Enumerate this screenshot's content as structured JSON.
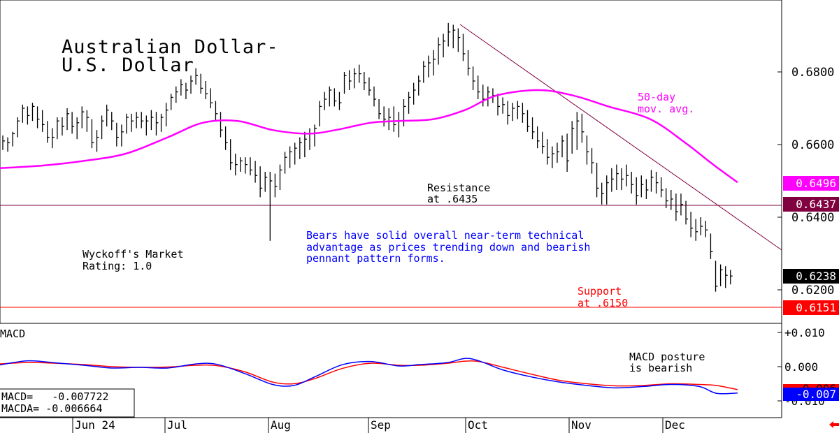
{
  "colors": {
    "price": "#000000",
    "ma": "#ff00ff",
    "support": "#ff0000",
    "resistance": "#800040",
    "trendline": "#800040",
    "macd": "#0000ff",
    "macda": "#ff0000",
    "annotation_blue": "#0000ff",
    "annotation_pink": "#ff00ff",
    "annotation_red": "#ff0000",
    "badge_ma": "#ff00ff",
    "badge_resistance": "#800040",
    "badge_last": "#000000",
    "badge_support": "#ff0000",
    "badge_macd": "#0000ff"
  },
  "title": {
    "line1": "Australian Dollar-",
    "line2": "U.S. Dollar"
  },
  "annotations": {
    "ma_label1": "50-day",
    "ma_label2": "mov. avg.",
    "resistance_label1": "Resistance",
    "resistance_label2": "at .6435",
    "support_label1": "Support",
    "support_label2": "at .6150",
    "commentary1": "Bears have solid overall near-term technical",
    "commentary2": "advantage as prices trending down and bearish",
    "commentary3": "pennant pattern forms.",
    "rating1": "Wyckoff's Market",
    "rating2": "Rating: 1.0",
    "macd_posture1": "MACD posture",
    "macd_posture2": "is bearish"
  },
  "macd_panel": {
    "label": "MACD",
    "macd_readout": "MACD=   -0.007722",
    "macda_readout": "MACDA= -0.006664"
  },
  "badges": {
    "ma": "0.6496",
    "resistance": "0.6437",
    "last": "0.6238",
    "support": "0.6151",
    "macd_hidden": "-0.006",
    "macd_last": "-0.007"
  },
  "chart_data": {
    "type": "ohlc_bar",
    "title": "Australian Dollar-U.S. Dollar",
    "x_tick_labels": [
      "Jun 24",
      "Jul",
      "Aug",
      "Sep",
      "Oct",
      "Nov",
      "Dec"
    ],
    "y_tick_labels": [
      "0.6800",
      "0.6600",
      "0.6400",
      "0.6200"
    ],
    "ylim": [
      0.61,
      0.699
    ],
    "resistance": 0.6435,
    "support": 0.615,
    "last_price": 0.6238,
    "ma50_last": 0.6496,
    "trendline": {
      "from": [
        "Oct 1",
        0.6935
      ],
      "to": [
        "Dec 31",
        0.6291
      ]
    },
    "series": [
      {
        "name": "price",
        "bars": [
          [
            0.6625,
            0.6585,
            0.661
          ],
          [
            0.662,
            0.658,
            0.6605
          ],
          [
            0.6635,
            0.6595,
            0.663
          ],
          [
            0.6675,
            0.662,
            0.6665
          ],
          [
            0.671,
            0.666,
            0.67
          ],
          [
            0.6705,
            0.6655,
            0.668
          ],
          [
            0.6715,
            0.6665,
            0.6705
          ],
          [
            0.6705,
            0.6645,
            0.667
          ],
          [
            0.6695,
            0.6635,
            0.6655
          ],
          [
            0.6665,
            0.6605,
            0.662
          ],
          [
            0.6645,
            0.659,
            0.662
          ],
          [
            0.6675,
            0.6615,
            0.6665
          ],
          [
            0.6675,
            0.6625,
            0.665
          ],
          [
            0.67,
            0.664,
            0.6685
          ],
          [
            0.669,
            0.663,
            0.665
          ],
          [
            0.6675,
            0.6615,
            0.666
          ],
          [
            0.6705,
            0.6645,
            0.669
          ],
          [
            0.6695,
            0.6635,
            0.6675
          ],
          [
            0.667,
            0.659,
            0.6605
          ],
          [
            0.664,
            0.658,
            0.662
          ],
          [
            0.668,
            0.6615,
            0.6665
          ],
          [
            0.671,
            0.665,
            0.6695
          ],
          [
            0.669,
            0.664,
            0.6665
          ],
          [
            0.666,
            0.6595,
            0.662
          ],
          [
            0.6655,
            0.6595,
            0.6635
          ],
          [
            0.6685,
            0.663,
            0.6675
          ],
          [
            0.6685,
            0.6635,
            0.6665
          ],
          [
            0.669,
            0.6645,
            0.6675
          ],
          [
            0.669,
            0.6645,
            0.6665
          ],
          [
            0.668,
            0.6625,
            0.6665
          ],
          [
            0.6695,
            0.664,
            0.6675
          ],
          [
            0.669,
            0.6625,
            0.666
          ],
          [
            0.6685,
            0.6635,
            0.6675
          ],
          [
            0.6715,
            0.665,
            0.6695
          ],
          [
            0.674,
            0.6695,
            0.673
          ],
          [
            0.676,
            0.6715,
            0.6745
          ],
          [
            0.678,
            0.6735,
            0.6765
          ],
          [
            0.677,
            0.6725,
            0.675
          ],
          [
            0.679,
            0.674,
            0.6775
          ],
          [
            0.681,
            0.6765,
            0.679
          ],
          [
            0.6795,
            0.674,
            0.6755
          ],
          [
            0.6775,
            0.6725,
            0.674
          ],
          [
            0.6755,
            0.67,
            0.6715
          ],
          [
            0.672,
            0.6665,
            0.6685
          ],
          [
            0.669,
            0.662,
            0.664
          ],
          [
            0.665,
            0.6585,
            0.6605
          ],
          [
            0.6615,
            0.653,
            0.655
          ],
          [
            0.6575,
            0.6515,
            0.6545
          ],
          [
            0.6565,
            0.6525,
            0.6555
          ],
          [
            0.6565,
            0.652,
            0.6545
          ],
          [
            0.6565,
            0.6515,
            0.653
          ],
          [
            0.6555,
            0.6495,
            0.6515
          ],
          [
            0.654,
            0.6455,
            0.648
          ],
          [
            0.6525,
            0.647,
            0.651
          ],
          [
            0.6525,
            0.6335,
            0.65
          ],
          [
            0.652,
            0.6455,
            0.6485
          ],
          [
            0.6545,
            0.6475,
            0.653
          ],
          [
            0.658,
            0.652,
            0.6565
          ],
          [
            0.6595,
            0.6535,
            0.658
          ],
          [
            0.6605,
            0.6545,
            0.659
          ],
          [
            0.662,
            0.656,
            0.6605
          ],
          [
            0.6635,
            0.6565,
            0.6615
          ],
          [
            0.6645,
            0.6585,
            0.663
          ],
          [
            0.6655,
            0.6595,
            0.6645
          ],
          [
            0.672,
            0.665,
            0.6705
          ],
          [
            0.6745,
            0.6695,
            0.6725
          ],
          [
            0.676,
            0.6705,
            0.675
          ],
          [
            0.6755,
            0.6705,
            0.672
          ],
          [
            0.6745,
            0.6695,
            0.6715
          ],
          [
            0.68,
            0.674,
            0.679
          ],
          [
            0.6805,
            0.675,
            0.6775
          ],
          [
            0.681,
            0.6755,
            0.6795
          ],
          [
            0.682,
            0.677,
            0.6795
          ],
          [
            0.68,
            0.675,
            0.677
          ],
          [
            0.6785,
            0.6735,
            0.675
          ],
          [
            0.676,
            0.6705,
            0.6725
          ],
          [
            0.6725,
            0.667,
            0.6685
          ],
          [
            0.6705,
            0.665,
            0.667
          ],
          [
            0.67,
            0.664,
            0.6675
          ],
          [
            0.6705,
            0.6635,
            0.6655
          ],
          [
            0.669,
            0.662,
            0.6665
          ],
          [
            0.6725,
            0.665,
            0.6705
          ],
          [
            0.6745,
            0.6685,
            0.673
          ],
          [
            0.677,
            0.671,
            0.675
          ],
          [
            0.679,
            0.6735,
            0.6775
          ],
          [
            0.683,
            0.677,
            0.6815
          ],
          [
            0.6845,
            0.6785,
            0.6825
          ],
          [
            0.686,
            0.679,
            0.6835
          ],
          [
            0.6895,
            0.682,
            0.6875
          ],
          [
            0.6905,
            0.684,
            0.6885
          ],
          [
            0.6935,
            0.687,
            0.691
          ],
          [
            0.693,
            0.6865,
            0.6915
          ],
          [
            0.692,
            0.6855,
            0.6895
          ],
          [
            0.6905,
            0.683,
            0.685
          ],
          [
            0.686,
            0.679,
            0.681
          ],
          [
            0.6815,
            0.675,
            0.6775
          ],
          [
            0.679,
            0.6725,
            0.6745
          ],
          [
            0.6765,
            0.6705,
            0.6725
          ],
          [
            0.676,
            0.6705,
            0.6745
          ],
          [
            0.6755,
            0.6715,
            0.6735
          ],
          [
            0.674,
            0.668,
            0.6705
          ],
          [
            0.673,
            0.6685,
            0.671
          ],
          [
            0.672,
            0.6655,
            0.668
          ],
          [
            0.6715,
            0.6665,
            0.67
          ],
          [
            0.672,
            0.667,
            0.6705
          ],
          [
            0.6715,
            0.666,
            0.6685
          ],
          [
            0.6695,
            0.6635,
            0.665
          ],
          [
            0.6675,
            0.6615,
            0.6635
          ],
          [
            0.665,
            0.659,
            0.661
          ],
          [
            0.6635,
            0.6575,
            0.6595
          ],
          [
            0.6615,
            0.6545,
            0.6565
          ],
          [
            0.6595,
            0.6535,
            0.6575
          ],
          [
            0.6605,
            0.655,
            0.658
          ],
          [
            0.6625,
            0.6565,
            0.661
          ],
          [
            0.663,
            0.6525,
            0.6555
          ],
          [
            0.6665,
            0.6575,
            0.6645
          ],
          [
            0.669,
            0.6585,
            0.6665
          ],
          [
            0.6685,
            0.6605,
            0.6635
          ],
          [
            0.6625,
            0.6545,
            0.658
          ],
          [
            0.659,
            0.652,
            0.655
          ],
          [
            0.655,
            0.6455,
            0.648
          ],
          [
            0.6495,
            0.6435,
            0.6465
          ],
          [
            0.6515,
            0.6435,
            0.6495
          ],
          [
            0.6535,
            0.647,
            0.6505
          ],
          [
            0.6545,
            0.6475,
            0.652
          ],
          [
            0.6535,
            0.6475,
            0.6505
          ],
          [
            0.6545,
            0.6485,
            0.6515
          ],
          [
            0.6525,
            0.6465,
            0.649
          ],
          [
            0.651,
            0.6435,
            0.646
          ],
          [
            0.6515,
            0.6455,
            0.649
          ],
          [
            0.6505,
            0.645,
            0.6475
          ],
          [
            0.653,
            0.647,
            0.651
          ],
          [
            0.6525,
            0.6465,
            0.6495
          ],
          [
            0.651,
            0.6455,
            0.6475
          ],
          [
            0.648,
            0.6425,
            0.6445
          ],
          [
            0.6475,
            0.642,
            0.645
          ],
          [
            0.6465,
            0.639,
            0.6415
          ],
          [
            0.6465,
            0.6405,
            0.6435
          ],
          [
            0.6445,
            0.638,
            0.6395
          ],
          [
            0.6415,
            0.6345,
            0.637
          ],
          [
            0.6395,
            0.6335,
            0.636
          ],
          [
            0.64,
            0.635,
            0.6375
          ],
          [
            0.639,
            0.6345,
            0.6365
          ],
          [
            0.6355,
            0.6285,
            0.6305
          ],
          [
            0.628,
            0.6195,
            0.621
          ],
          [
            0.627,
            0.621,
            0.6255
          ],
          [
            0.6265,
            0.6205,
            0.624
          ],
          [
            0.6255,
            0.6215,
            0.6238
          ]
        ]
      },
      {
        "name": "50-day mov. avg.",
        "points": [
          [
            0,
            0.6535
          ],
          [
            60,
            0.6542
          ],
          [
            120,
            0.6555
          ],
          [
            180,
            0.6575
          ],
          [
            240,
            0.662
          ],
          [
            290,
            0.666
          ],
          [
            340,
            0.6665
          ],
          [
            390,
            0.664
          ],
          [
            440,
            0.663
          ],
          [
            480,
            0.664
          ],
          [
            530,
            0.666
          ],
          [
            570,
            0.6665
          ],
          [
            620,
            0.667
          ],
          [
            665,
            0.6695
          ],
          [
            710,
            0.6735
          ],
          [
            770,
            0.675
          ],
          [
            820,
            0.6735
          ],
          [
            870,
            0.6705
          ],
          [
            930,
            0.667
          ],
          [
            980,
            0.6605
          ],
          [
            1020,
            0.6545
          ],
          [
            1055,
            0.6496
          ]
        ]
      }
    ],
    "macd_ylim": [
      -0.0105,
      0.0115
    ],
    "macd_y_tick_labels": [
      "+0.010",
      "0.000",
      "-0.010"
    ],
    "macd_series": [
      {
        "name": "MACD",
        "points": [
          [
            0,
            0.0005
          ],
          [
            40,
            0.0017
          ],
          [
            80,
            0.0011
          ],
          [
            120,
            0.0004
          ],
          [
            160,
            -0.0004
          ],
          [
            200,
            -0.0002
          ],
          [
            240,
            -0.0004
          ],
          [
            280,
            0.0008
          ],
          [
            310,
            0.0007
          ],
          [
            350,
            -0.002
          ],
          [
            390,
            -0.0052
          ],
          [
            420,
            -0.0055
          ],
          [
            450,
            -0.003
          ],
          [
            490,
            0.0006
          ],
          [
            530,
            0.0015
          ],
          [
            570,
            0.0002
          ],
          [
            600,
            0.0006
          ],
          [
            640,
            0.0012
          ],
          [
            665,
            0.0024
          ],
          [
            685,
            0.0017
          ],
          [
            720,
            -0.001
          ],
          [
            760,
            -0.003
          ],
          [
            800,
            -0.0045
          ],
          [
            840,
            -0.0055
          ],
          [
            880,
            -0.0062
          ],
          [
            920,
            -0.0058
          ],
          [
            960,
            -0.0052
          ],
          [
            1000,
            -0.0058
          ],
          [
            1025,
            -0.0078
          ],
          [
            1055,
            -0.0077
          ]
        ]
      },
      {
        "name": "MACDA",
        "points": [
          [
            0,
            0.0008
          ],
          [
            40,
            0.0012
          ],
          [
            80,
            0.001
          ],
          [
            120,
            0.0006
          ],
          [
            160,
            0.0
          ],
          [
            200,
            -0.0002
          ],
          [
            240,
            -0.0001
          ],
          [
            280,
            0.0004
          ],
          [
            310,
            0.0003
          ],
          [
            350,
            -0.0015
          ],
          [
            390,
            -0.0045
          ],
          [
            420,
            -0.005
          ],
          [
            450,
            -0.0035
          ],
          [
            490,
            -0.0005
          ],
          [
            530,
            0.001
          ],
          [
            570,
            0.0004
          ],
          [
            600,
            0.0004
          ],
          [
            640,
            0.001
          ],
          [
            665,
            0.0016
          ],
          [
            685,
            0.0015
          ],
          [
            720,
            -0.0002
          ],
          [
            760,
            -0.0022
          ],
          [
            800,
            -0.004
          ],
          [
            840,
            -0.005
          ],
          [
            880,
            -0.0056
          ],
          [
            920,
            -0.0055
          ],
          [
            960,
            -0.005
          ],
          [
            1000,
            -0.0052
          ],
          [
            1025,
            -0.0055
          ],
          [
            1055,
            -0.0067
          ]
        ]
      }
    ]
  }
}
